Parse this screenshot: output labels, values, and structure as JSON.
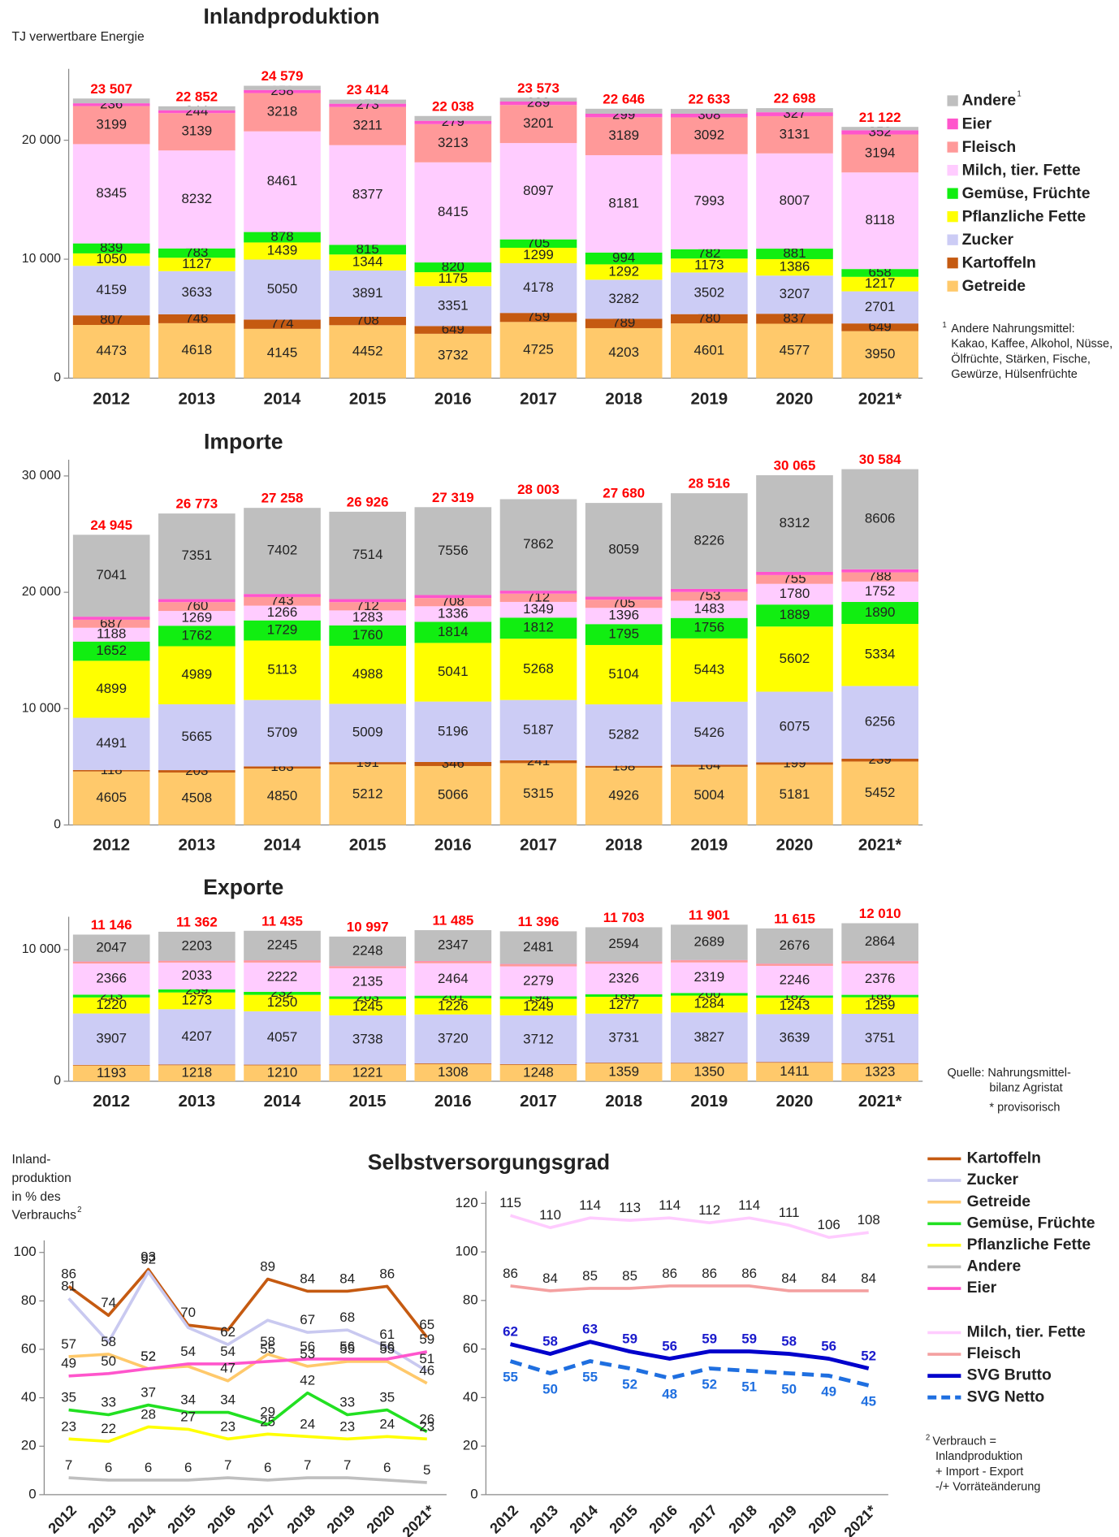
{
  "chart_data": [
    {
      "type": "stacked_bar",
      "title": "Inlandproduktion",
      "subtitle": "TJ verwertbare Energie",
      "categories": [
        "2012",
        "2013",
        "2014",
        "2015",
        "2016",
        "2017",
        "2018",
        "2019",
        "2020",
        "2021*"
      ],
      "ylim": [
        0,
        26000
      ],
      "yticks": [
        0,
        {
          "value": 10000,
          "label": "10 000"
        },
        {
          "value": 20000,
          "label": "20 000"
        }
      ],
      "series": [
        {
          "name": "Getreide",
          "color": "#ffc96b",
          "show_labels": true,
          "values": [
            4473,
            4618,
            4145,
            4452,
            3732,
            4725,
            4203,
            4601,
            4577,
            3950
          ]
        },
        {
          "name": "Kartoffeln",
          "color": "#c55a11",
          "show_labels": true,
          "values": [
            807,
            746,
            774,
            708,
            649,
            759,
            789,
            780,
            837,
            649
          ]
        },
        {
          "name": "Zucker",
          "color": "#ccccf5",
          "show_labels": true,
          "values": [
            4159,
            3633,
            5050,
            3891,
            3351,
            4178,
            3282,
            3502,
            3207,
            2701
          ]
        },
        {
          "name": "Pflanzliche Fette",
          "color": "#ffff00",
          "show_labels": true,
          "values": [
            1050,
            1127,
            1439,
            1344,
            1175,
            1299,
            1292,
            1173,
            1386,
            1217
          ]
        },
        {
          "name": "Gemüse, Früchte",
          "color": "#11ee11",
          "show_labels": true,
          "values": [
            839,
            783,
            878,
            815,
            820,
            705,
            994,
            782,
            881,
            658
          ]
        },
        {
          "name": "Milch, tier. Fette",
          "color": "#ffccff",
          "show_labels": true,
          "values": [
            8345,
            8232,
            8461,
            8377,
            8415,
            8097,
            8181,
            7993,
            8007,
            8118
          ]
        },
        {
          "name": "Fleisch",
          "color": "#ff9999",
          "show_labels": true,
          "values": [
            3199,
            3139,
            3218,
            3211,
            3213,
            3201,
            3189,
            3092,
            3131,
            3194
          ]
        },
        {
          "name": "Eier",
          "color": "#ff55cc",
          "show_labels": true,
          "values": [
            236,
            244,
            258,
            273,
            279,
            289,
            299,
            308,
            327,
            352
          ]
        },
        {
          "name": "Andere",
          "color": "#bfbfbf",
          "show_labels": false,
          "values": [
            399,
            330,
            356,
            343,
            404,
            320,
            417,
            402,
            345,
            283
          ]
        }
      ],
      "totals": [
        23507,
        22852,
        24579,
        23414,
        22038,
        23573,
        22646,
        22633,
        22698,
        21122
      ],
      "total_labels": [
        "23 507",
        "22 852",
        "24 579",
        "23 414",
        "22 038",
        "23 573",
        "22 646",
        "22 633",
        "22 698",
        "21 122"
      ],
      "legend": true,
      "legend_footnote_mark": "1",
      "footnote_mark": "1",
      "footnote": [
        "Andere Nahrungsmittel:",
        "Kakao, Kaffee, Alkohol, Nüsse,",
        "Ölfrüchte, Stärken, Fische,",
        "Gewürze, Hülsenfrüchte"
      ]
    },
    {
      "type": "stacked_bar",
      "title": "Importe",
      "categories": [
        "2012",
        "2013",
        "2014",
        "2015",
        "2016",
        "2017",
        "2018",
        "2019",
        "2020",
        "2021*"
      ],
      "ylim": [
        0,
        31400
      ],
      "yticks": [
        0,
        {
          "value": 10000,
          "label": "10 000"
        },
        {
          "value": 20000,
          "label": "20 000"
        },
        {
          "value": 30000,
          "label": "30 000"
        }
      ],
      "series": [
        {
          "name": "Getreide",
          "color": "#ffc96b",
          "show_labels": true,
          "values": [
            4605,
            4508,
            4850,
            5212,
            5066,
            5315,
            4926,
            5004,
            5181,
            5452
          ]
        },
        {
          "name": "Kartoffeln",
          "color": "#c55a11",
          "show_labels": true,
          "values": [
            118,
            203,
            183,
            191,
            346,
            241,
            158,
            164,
            199,
            239
          ]
        },
        {
          "name": "Zucker",
          "color": "#ccccf5",
          "show_labels": true,
          "values": [
            4491,
            5665,
            5709,
            5009,
            5196,
            5187,
            5282,
            5426,
            6075,
            6256
          ]
        },
        {
          "name": "Pflanzliche Fette",
          "color": "#ffff00",
          "show_labels": true,
          "values": [
            4899,
            4989,
            5113,
            4988,
            5041,
            5268,
            5104,
            5443,
            5602,
            5334
          ]
        },
        {
          "name": "Gemüse, Früchte",
          "color": "#11ee11",
          "show_labels": true,
          "values": [
            1652,
            1762,
            1729,
            1760,
            1814,
            1812,
            1795,
            1756,
            1889,
            1890
          ]
        },
        {
          "name": "Milch, tier. Fette",
          "color": "#ffccff",
          "show_labels": true,
          "values": [
            1188,
            1269,
            1266,
            1283,
            1336,
            1349,
            1396,
            1483,
            1780,
            1752
          ]
        },
        {
          "name": "Fleisch",
          "color": "#ff9999",
          "show_labels": true,
          "values": [
            687,
            760,
            743,
            712,
            708,
            712,
            705,
            753,
            755,
            788
          ]
        },
        {
          "name": "Eier",
          "color": "#ff55cc",
          "show_labels": false,
          "values": [
            264,
            266,
            263,
            257,
            256,
            257,
            255,
            261,
            272,
            267
          ]
        },
        {
          "name": "Andere",
          "color": "#bfbfbf",
          "show_labels": true,
          "values": [
            7041,
            7351,
            7402,
            7514,
            7556,
            7862,
            8059,
            8226,
            8312,
            8606
          ]
        }
      ],
      "totals": [
        24945,
        26773,
        27258,
        26926,
        27319,
        28003,
        27680,
        28516,
        30065,
        30584
      ],
      "total_labels": [
        "24 945",
        "26 773",
        "27 258",
        "26 926",
        "27 319",
        "28 003",
        "27 680",
        "28 516",
        "30 065",
        "30 584"
      ],
      "legend": false
    },
    {
      "type": "stacked_bar",
      "title": "Exporte",
      "categories": [
        "2012",
        "2013",
        "2014",
        "2015",
        "2016",
        "2017",
        "2018",
        "2019",
        "2020",
        "2021*"
      ],
      "ylim": [
        0,
        12500
      ],
      "yticks": [
        0,
        {
          "value": 10000,
          "label": "10 000"
        }
      ],
      "series": [
        {
          "name": "Getreide",
          "color": "#ffc96b",
          "show_labels": true,
          "values": [
            1193,
            1218,
            1210,
            1221,
            1308,
            1248,
            1359,
            1350,
            1411,
            1323
          ]
        },
        {
          "name": "Kartoffeln",
          "color": "#c55a11",
          "show_labels": false,
          "values": [
            50,
            50,
            50,
            50,
            50,
            50,
            50,
            50,
            50,
            50
          ]
        },
        {
          "name": "Zucker",
          "color": "#ccccf5",
          "show_labels": true,
          "values": [
            3907,
            4207,
            4057,
            3738,
            3720,
            3712,
            3731,
            3827,
            3639,
            3751
          ]
        },
        {
          "name": "Pflanzliche Fette",
          "color": "#ffff00",
          "show_labels": true,
          "values": [
            1220,
            1273,
            1250,
            1245,
            1226,
            1249,
            1277,
            1284,
            1243,
            1259
          ]
        },
        {
          "name": "Gemüse, Früchte",
          "color": "#11ee11",
          "show_labels": true,
          "values": [
            213,
            239,
            232,
            203,
            201,
            194,
            189,
            200,
            182,
            186
          ]
        },
        {
          "name": "Milch, tier. Fette",
          "color": "#ffccff",
          "show_labels": true,
          "values": [
            2366,
            2033,
            2222,
            2135,
            2464,
            2279,
            2326,
            2319,
            2246,
            2376
          ]
        },
        {
          "name": "Fleisch",
          "color": "#ff9999",
          "show_labels": false,
          "values": [
            130,
            119,
            149,
            137,
            149,
            163,
            157,
            162,
            148,
            181
          ]
        },
        {
          "name": "Eier",
          "color": "#ff55cc",
          "show_labels": false,
          "values": [
            20,
            20,
            20,
            20,
            20,
            20,
            20,
            20,
            20,
            20
          ]
        },
        {
          "name": "Andere",
          "color": "#bfbfbf",
          "show_labels": true,
          "values": [
            2047,
            2203,
            2245,
            2248,
            2347,
            2481,
            2594,
            2689,
            2676,
            2864
          ]
        }
      ],
      "totals": [
        11146,
        11362,
        11435,
        10997,
        11485,
        11396,
        11703,
        11901,
        11615,
        12010
      ],
      "total_labels": [
        "11 146",
        "11 362",
        "11 435",
        "10 997",
        "11 485",
        "11 396",
        "11 703",
        "11 901",
        "11 615",
        "12 010"
      ],
      "legend": false,
      "notes": [
        "Quelle: Nahrungsmittel-",
        "bilanz Agristat",
        "* provisorisch"
      ]
    },
    {
      "type": "line",
      "title": "Selbstversorgungsgrad",
      "ylabel": [
        "Inland-",
        "produktion",
        "in % des",
        "Verbrauchs"
      ],
      "ylabel_mark": "2",
      "categories": [
        "2012",
        "2013",
        "2014",
        "2015",
        "2016",
        "2017",
        "2018",
        "2019",
        "2020",
        "2021*"
      ],
      "ylim": [
        0,
        105
      ],
      "yticks": [
        0,
        20,
        40,
        60,
        80,
        100
      ],
      "series": [
        {
          "name": "Kartoffeln",
          "color": "#c55a11",
          "values": [
            86,
            74,
            93,
            70,
            68,
            89,
            84,
            84,
            86,
            65
          ],
          "value_labels": [
            "86",
            "74",
            "93",
            "70",
            null,
            "89",
            "84",
            "84",
            "86",
            "65"
          ]
        },
        {
          "name": "Zucker",
          "color": "#c9c9f0",
          "values": [
            81,
            63,
            92,
            69,
            62,
            72,
            67,
            68,
            61,
            51
          ],
          "value_labels": [
            "81",
            null,
            "92",
            null,
            "62",
            null,
            "67",
            "68",
            "61",
            "51"
          ]
        },
        {
          "name": "Getreide",
          "color": "#ffc96b",
          "values": [
            57,
            58,
            52,
            53,
            47,
            58,
            53,
            55,
            55,
            46
          ],
          "value_labels": [
            "57",
            "58",
            "52",
            null,
            "47",
            "58",
            "53",
            "55",
            "55",
            "46"
          ]
        },
        {
          "name": "Gemüse, Früchte",
          "color": "#22e022",
          "values": [
            35,
            33,
            37,
            34,
            34,
            29,
            42,
            33,
            35,
            26
          ],
          "value_labels": [
            "35",
            "33",
            "37",
            "34",
            "34",
            "29",
            "42",
            "33",
            "35",
            "26"
          ]
        },
        {
          "name": "Pflanzliche Fette",
          "color": "#ffff00",
          "values": [
            23,
            22,
            28,
            27,
            23,
            25,
            24,
            23,
            24,
            23
          ],
          "value_labels": [
            "23",
            "22",
            "28",
            "27",
            "23",
            "25",
            "24",
            "23",
            "24",
            "23"
          ]
        },
        {
          "name": "Andere",
          "color": "#bfbfbf",
          "values": [
            7,
            6,
            6,
            6,
            7,
            6,
            7,
            7,
            6,
            5
          ],
          "value_labels": [
            "7",
            "6",
            "6",
            "6",
            "7",
            "6",
            "7",
            "7",
            "6",
            "5"
          ]
        },
        {
          "name": "Eier",
          "color": "#ff55cc",
          "values": [
            49,
            50,
            52,
            54,
            54,
            55,
            56,
            56,
            56,
            59
          ],
          "value_labels": [
            "49",
            "50",
            "52",
            "54",
            "54",
            "55",
            "56",
            "56",
            "56",
            "59"
          ]
        }
      ],
      "legend": true
    },
    {
      "type": "line",
      "categories": [
        "2012",
        "2013",
        "2014",
        "2015",
        "2016",
        "2017",
        "2018",
        "2019",
        "2020",
        "2021*"
      ],
      "ylim": [
        0,
        125
      ],
      "yticks": [
        0,
        20,
        40,
        60,
        80,
        100,
        120
      ],
      "series": [
        {
          "name": "Milch, tier. Fette",
          "color": "#ffccff",
          "values": [
            115,
            110,
            114,
            113,
            114,
            112,
            114,
            111,
            106,
            108
          ]
        },
        {
          "name": "Fleisch",
          "color": "#f4a0a0",
          "values": [
            86,
            84,
            85,
            85,
            86,
            86,
            86,
            84,
            84,
            84
          ]
        },
        {
          "name": "SVG Brutto",
          "color": "#0000cc",
          "label_color": "#1a1acc",
          "line_width": 4,
          "values": [
            62,
            58,
            63,
            59,
            56,
            59,
            59,
            58,
            56,
            52
          ]
        },
        {
          "name": "SVG Netto",
          "color": "#1f6fe0",
          "label_color": "#1f6fe0",
          "line_width": 4,
          "dashed": true,
          "label_side": "below",
          "values": [
            55,
            50,
            55,
            52,
            48,
            52,
            51,
            50,
            49,
            45
          ]
        }
      ],
      "legend": true,
      "footnote_mark": "2",
      "footnote": [
        "Verbrauch =",
        "Inlandproduktion",
        "+ Import - Export",
        "-/+ Vorräteänderung"
      ]
    }
  ]
}
